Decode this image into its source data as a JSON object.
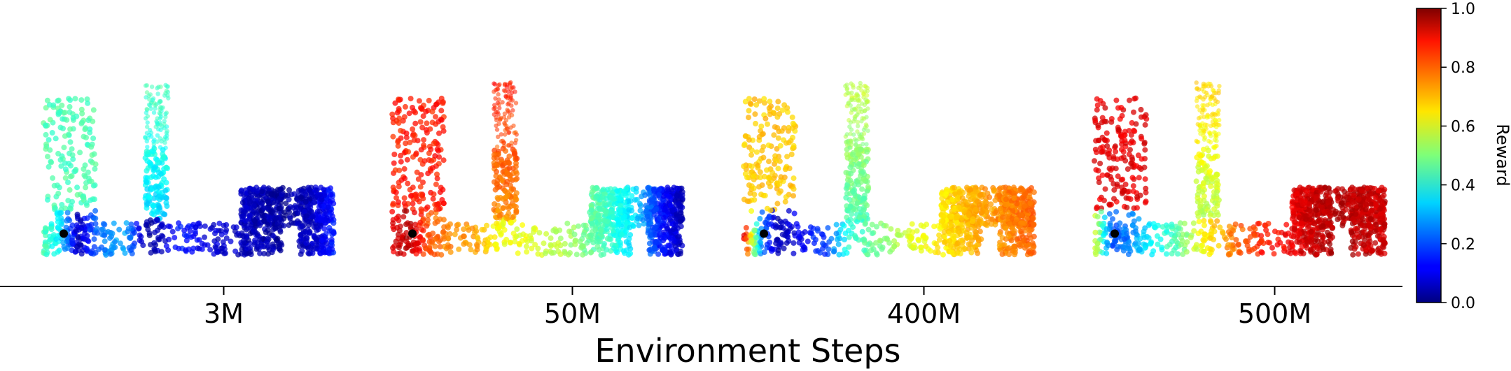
{
  "chart_data": {
    "type": "scatter",
    "xlabel": "Environment Steps",
    "panels": [
      {
        "label": "3M",
        "start_dot": [
          0.07,
          0.12
        ],
        "segments": [
          [
            0.0,
            0.45
          ],
          [
            0.06,
            0.35
          ],
          [
            0.12,
            0.05
          ],
          [
            0.18,
            0.22
          ],
          [
            0.28,
            0.3
          ],
          [
            0.36,
            0.02
          ],
          [
            0.47,
            0.15
          ],
          [
            0.58,
            0.08
          ],
          [
            0.75,
            0.05
          ],
          [
            0.83,
            0.03
          ],
          [
            0.92,
            0.06
          ],
          [
            1.0,
            0.15
          ]
        ],
        "arm_values": [
          0.45,
          0.38
        ]
      },
      {
        "label": "50M",
        "start_dot": [
          0.07,
          0.12
        ],
        "segments": [
          [
            0.0,
            0.9
          ],
          [
            0.06,
            0.95
          ],
          [
            0.12,
            0.8
          ],
          [
            0.18,
            0.75
          ],
          [
            0.28,
            0.72
          ],
          [
            0.36,
            0.62
          ],
          [
            0.47,
            0.6
          ],
          [
            0.58,
            0.55
          ],
          [
            0.75,
            0.42
          ],
          [
            0.83,
            0.35
          ],
          [
            0.92,
            0.15
          ],
          [
            1.0,
            0.05
          ]
        ],
        "arm_values": [
          0.85,
          0.78
        ]
      },
      {
        "label": "400M",
        "start_dot": [
          0.07,
          0.12
        ],
        "segments": [
          [
            0.0,
            0.9
          ],
          [
            0.06,
            0.25
          ],
          [
            0.12,
            0.05
          ],
          [
            0.18,
            0.1
          ],
          [
            0.28,
            0.18
          ],
          [
            0.36,
            0.4
          ],
          [
            0.47,
            0.5
          ],
          [
            0.58,
            0.6
          ],
          [
            0.75,
            0.68
          ],
          [
            0.83,
            0.72
          ],
          [
            0.92,
            0.75
          ],
          [
            1.0,
            0.78
          ]
        ],
        "arm_values": [
          0.68,
          0.5
        ]
      },
      {
        "label": "500M",
        "start_dot": [
          0.07,
          0.12
        ],
        "segments": [
          [
            0.0,
            0.6
          ],
          [
            0.06,
            0.2
          ],
          [
            0.12,
            0.25
          ],
          [
            0.18,
            0.35
          ],
          [
            0.28,
            0.45
          ],
          [
            0.36,
            0.6
          ],
          [
            0.47,
            0.75
          ],
          [
            0.58,
            0.85
          ],
          [
            0.75,
            0.93
          ],
          [
            0.83,
            0.95
          ],
          [
            0.92,
            0.94
          ],
          [
            1.0,
            0.92
          ]
        ],
        "arm_values": [
          0.9,
          0.6
        ]
      }
    ],
    "colorbar": {
      "label": "Reward",
      "range": [
        0.0,
        1.0
      ],
      "ticks": [
        "0.0",
        "0.2",
        "0.4",
        "0.6",
        "0.8",
        "1.0"
      ],
      "colormap": "jet"
    }
  }
}
